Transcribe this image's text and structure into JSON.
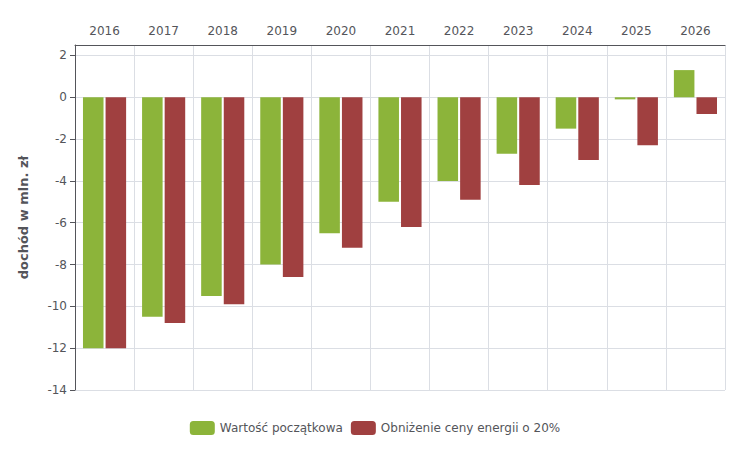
{
  "chart_data": {
    "type": "bar",
    "categories": [
      "2016",
      "2017",
      "2018",
      "2019",
      "2020",
      "2021",
      "2022",
      "2023",
      "2024",
      "2025",
      "2026"
    ],
    "series": [
      {
        "name": "Wartość początkowa",
        "color": "#8CB43A",
        "values": [
          -12.0,
          -10.5,
          -9.5,
          -8.0,
          -6.5,
          -5.0,
          -4.0,
          -2.7,
          -1.5,
          -0.1,
          1.3
        ]
      },
      {
        "name": "Obniżenie ceny energii o 20%",
        "color": "#A04040",
        "values": [
          -12.0,
          -10.8,
          -9.9,
          -8.6,
          -7.2,
          -6.2,
          -4.9,
          -4.2,
          -3.0,
          -2.3,
          -0.8
        ]
      }
    ],
    "ylabel": "dochód w mln. zł",
    "ylim": [
      -14,
      2.5
    ],
    "yticks": [
      -14,
      -12,
      -10,
      -8,
      -6,
      -4,
      -2,
      0,
      2
    ],
    "grid": true,
    "legend": "bottom"
  }
}
